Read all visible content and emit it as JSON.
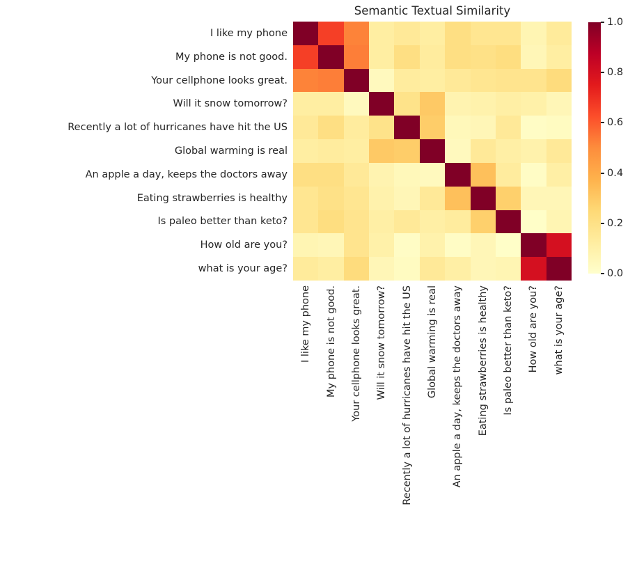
{
  "title": "Semantic Textual Similarity",
  "text_color": "#262626",
  "chart_data": {
    "type": "heatmap",
    "title": "Semantic Textual Similarity",
    "xlabel": "",
    "ylabel": "",
    "grid": false,
    "value_range": [
      0.0,
      1.0
    ],
    "labels": [
      "I like my phone",
      "My phone is not good.",
      "Your cellphone looks great.",
      "Will it snow tomorrow?",
      "Recently a lot of hurricanes have hit the US",
      "Global warming is real",
      "An apple a day, keeps the doctors away",
      "Eating strawberries is healthy",
      "Is paleo better than keto?",
      "How old are you?",
      "what is your age?"
    ],
    "matrix": [
      [
        1.0,
        0.66,
        0.52,
        0.12,
        0.15,
        0.12,
        0.21,
        0.17,
        0.17,
        0.07,
        0.14
      ],
      [
        0.66,
        1.0,
        0.53,
        0.12,
        0.21,
        0.13,
        0.21,
        0.2,
        0.22,
        0.06,
        0.12
      ],
      [
        0.52,
        0.53,
        1.0,
        0.04,
        0.13,
        0.12,
        0.15,
        0.17,
        0.18,
        0.18,
        0.23
      ],
      [
        0.12,
        0.12,
        0.04,
        1.0,
        0.19,
        0.3,
        0.08,
        0.09,
        0.11,
        0.1,
        0.06
      ],
      [
        0.15,
        0.21,
        0.13,
        0.19,
        1.0,
        0.29,
        0.05,
        0.06,
        0.15,
        0.02,
        0.03
      ],
      [
        0.12,
        0.13,
        0.12,
        0.3,
        0.29,
        1.0,
        0.04,
        0.15,
        0.11,
        0.09,
        0.15
      ],
      [
        0.21,
        0.21,
        0.15,
        0.08,
        0.05,
        0.04,
        1.0,
        0.33,
        0.13,
        0.02,
        0.11
      ],
      [
        0.17,
        0.2,
        0.17,
        0.09,
        0.06,
        0.15,
        0.33,
        1.0,
        0.28,
        0.06,
        0.06
      ],
      [
        0.17,
        0.22,
        0.18,
        0.11,
        0.15,
        0.11,
        0.13,
        0.28,
        1.0,
        0.01,
        0.07
      ],
      [
        0.07,
        0.06,
        0.18,
        0.1,
        0.02,
        0.09,
        0.02,
        0.06,
        0.01,
        1.0,
        0.8
      ],
      [
        0.14,
        0.12,
        0.23,
        0.06,
        0.03,
        0.15,
        0.11,
        0.06,
        0.07,
        0.8,
        1.0
      ]
    ],
    "colormap": {
      "name": "YlOrRd",
      "stops": [
        [
          0.0,
          "#ffffcc"
        ],
        [
          0.125,
          "#ffeda0"
        ],
        [
          0.25,
          "#fed976"
        ],
        [
          0.375,
          "#feb24c"
        ],
        [
          0.5,
          "#fd8d3c"
        ],
        [
          0.625,
          "#fc4e2a"
        ],
        [
          0.75,
          "#e31a1c"
        ],
        [
          0.875,
          "#bd0026"
        ],
        [
          1.0,
          "#800026"
        ]
      ]
    },
    "colorbar": {
      "min": 0.0,
      "max": 1.0,
      "tick_labels": [
        "0.0",
        "0.2",
        "0.4",
        "0.6",
        "0.8",
        "1.0"
      ],
      "tick_values": [
        0.0,
        0.2,
        0.4,
        0.6,
        0.8,
        1.0
      ],
      "position": "right"
    }
  }
}
